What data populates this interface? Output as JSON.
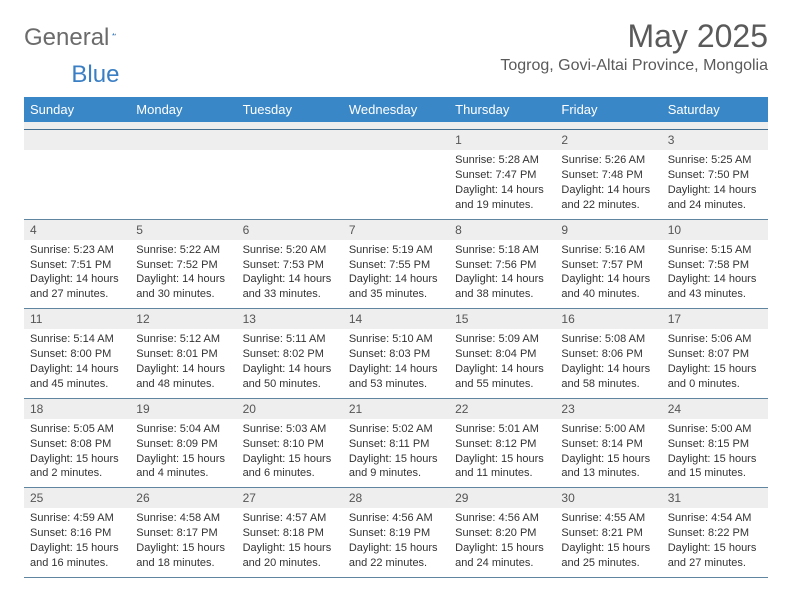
{
  "brand": {
    "part1": "General",
    "part2": "Blue"
  },
  "title": "May 2025",
  "location": "Togrog, Govi-Altai Province, Mongolia",
  "colors": {
    "header_bg": "#3a87c7",
    "header_text": "#ffffff",
    "daynum_bg": "#eeeeee",
    "rule": "#5f85a1",
    "text": "#333333",
    "brand_gray": "#6b6b6b",
    "brand_blue": "#3a7fc4"
  },
  "dow": [
    "Sunday",
    "Monday",
    "Tuesday",
    "Wednesday",
    "Thursday",
    "Friday",
    "Saturday"
  ],
  "weeks": [
    [
      {
        "empty": true
      },
      {
        "empty": true
      },
      {
        "empty": true
      },
      {
        "empty": true
      },
      {
        "day": "1",
        "sunrise": "Sunrise: 5:28 AM",
        "sunset": "Sunset: 7:47 PM",
        "dl1": "Daylight: 14 hours",
        "dl2": "and 19 minutes."
      },
      {
        "day": "2",
        "sunrise": "Sunrise: 5:26 AM",
        "sunset": "Sunset: 7:48 PM",
        "dl1": "Daylight: 14 hours",
        "dl2": "and 22 minutes."
      },
      {
        "day": "3",
        "sunrise": "Sunrise: 5:25 AM",
        "sunset": "Sunset: 7:50 PM",
        "dl1": "Daylight: 14 hours",
        "dl2": "and 24 minutes."
      }
    ],
    [
      {
        "day": "4",
        "sunrise": "Sunrise: 5:23 AM",
        "sunset": "Sunset: 7:51 PM",
        "dl1": "Daylight: 14 hours",
        "dl2": "and 27 minutes."
      },
      {
        "day": "5",
        "sunrise": "Sunrise: 5:22 AM",
        "sunset": "Sunset: 7:52 PM",
        "dl1": "Daylight: 14 hours",
        "dl2": "and 30 minutes."
      },
      {
        "day": "6",
        "sunrise": "Sunrise: 5:20 AM",
        "sunset": "Sunset: 7:53 PM",
        "dl1": "Daylight: 14 hours",
        "dl2": "and 33 minutes."
      },
      {
        "day": "7",
        "sunrise": "Sunrise: 5:19 AM",
        "sunset": "Sunset: 7:55 PM",
        "dl1": "Daylight: 14 hours",
        "dl2": "and 35 minutes."
      },
      {
        "day": "8",
        "sunrise": "Sunrise: 5:18 AM",
        "sunset": "Sunset: 7:56 PM",
        "dl1": "Daylight: 14 hours",
        "dl2": "and 38 minutes."
      },
      {
        "day": "9",
        "sunrise": "Sunrise: 5:16 AM",
        "sunset": "Sunset: 7:57 PM",
        "dl1": "Daylight: 14 hours",
        "dl2": "and 40 minutes."
      },
      {
        "day": "10",
        "sunrise": "Sunrise: 5:15 AM",
        "sunset": "Sunset: 7:58 PM",
        "dl1": "Daylight: 14 hours",
        "dl2": "and 43 minutes."
      }
    ],
    [
      {
        "day": "11",
        "sunrise": "Sunrise: 5:14 AM",
        "sunset": "Sunset: 8:00 PM",
        "dl1": "Daylight: 14 hours",
        "dl2": "and 45 minutes."
      },
      {
        "day": "12",
        "sunrise": "Sunrise: 5:12 AM",
        "sunset": "Sunset: 8:01 PM",
        "dl1": "Daylight: 14 hours",
        "dl2": "and 48 minutes."
      },
      {
        "day": "13",
        "sunrise": "Sunrise: 5:11 AM",
        "sunset": "Sunset: 8:02 PM",
        "dl1": "Daylight: 14 hours",
        "dl2": "and 50 minutes."
      },
      {
        "day": "14",
        "sunrise": "Sunrise: 5:10 AM",
        "sunset": "Sunset: 8:03 PM",
        "dl1": "Daylight: 14 hours",
        "dl2": "and 53 minutes."
      },
      {
        "day": "15",
        "sunrise": "Sunrise: 5:09 AM",
        "sunset": "Sunset: 8:04 PM",
        "dl1": "Daylight: 14 hours",
        "dl2": "and 55 minutes."
      },
      {
        "day": "16",
        "sunrise": "Sunrise: 5:08 AM",
        "sunset": "Sunset: 8:06 PM",
        "dl1": "Daylight: 14 hours",
        "dl2": "and 58 minutes."
      },
      {
        "day": "17",
        "sunrise": "Sunrise: 5:06 AM",
        "sunset": "Sunset: 8:07 PM",
        "dl1": "Daylight: 15 hours",
        "dl2": "and 0 minutes."
      }
    ],
    [
      {
        "day": "18",
        "sunrise": "Sunrise: 5:05 AM",
        "sunset": "Sunset: 8:08 PM",
        "dl1": "Daylight: 15 hours",
        "dl2": "and 2 minutes."
      },
      {
        "day": "19",
        "sunrise": "Sunrise: 5:04 AM",
        "sunset": "Sunset: 8:09 PM",
        "dl1": "Daylight: 15 hours",
        "dl2": "and 4 minutes."
      },
      {
        "day": "20",
        "sunrise": "Sunrise: 5:03 AM",
        "sunset": "Sunset: 8:10 PM",
        "dl1": "Daylight: 15 hours",
        "dl2": "and 6 minutes."
      },
      {
        "day": "21",
        "sunrise": "Sunrise: 5:02 AM",
        "sunset": "Sunset: 8:11 PM",
        "dl1": "Daylight: 15 hours",
        "dl2": "and 9 minutes."
      },
      {
        "day": "22",
        "sunrise": "Sunrise: 5:01 AM",
        "sunset": "Sunset: 8:12 PM",
        "dl1": "Daylight: 15 hours",
        "dl2": "and 11 minutes."
      },
      {
        "day": "23",
        "sunrise": "Sunrise: 5:00 AM",
        "sunset": "Sunset: 8:14 PM",
        "dl1": "Daylight: 15 hours",
        "dl2": "and 13 minutes."
      },
      {
        "day": "24",
        "sunrise": "Sunrise: 5:00 AM",
        "sunset": "Sunset: 8:15 PM",
        "dl1": "Daylight: 15 hours",
        "dl2": "and 15 minutes."
      }
    ],
    [
      {
        "day": "25",
        "sunrise": "Sunrise: 4:59 AM",
        "sunset": "Sunset: 8:16 PM",
        "dl1": "Daylight: 15 hours",
        "dl2": "and 16 minutes."
      },
      {
        "day": "26",
        "sunrise": "Sunrise: 4:58 AM",
        "sunset": "Sunset: 8:17 PM",
        "dl1": "Daylight: 15 hours",
        "dl2": "and 18 minutes."
      },
      {
        "day": "27",
        "sunrise": "Sunrise: 4:57 AM",
        "sunset": "Sunset: 8:18 PM",
        "dl1": "Daylight: 15 hours",
        "dl2": "and 20 minutes."
      },
      {
        "day": "28",
        "sunrise": "Sunrise: 4:56 AM",
        "sunset": "Sunset: 8:19 PM",
        "dl1": "Daylight: 15 hours",
        "dl2": "and 22 minutes."
      },
      {
        "day": "29",
        "sunrise": "Sunrise: 4:56 AM",
        "sunset": "Sunset: 8:20 PM",
        "dl1": "Daylight: 15 hours",
        "dl2": "and 24 minutes."
      },
      {
        "day": "30",
        "sunrise": "Sunrise: 4:55 AM",
        "sunset": "Sunset: 8:21 PM",
        "dl1": "Daylight: 15 hours",
        "dl2": "and 25 minutes."
      },
      {
        "day": "31",
        "sunrise": "Sunrise: 4:54 AM",
        "sunset": "Sunset: 8:22 PM",
        "dl1": "Daylight: 15 hours",
        "dl2": "and 27 minutes."
      }
    ]
  ]
}
